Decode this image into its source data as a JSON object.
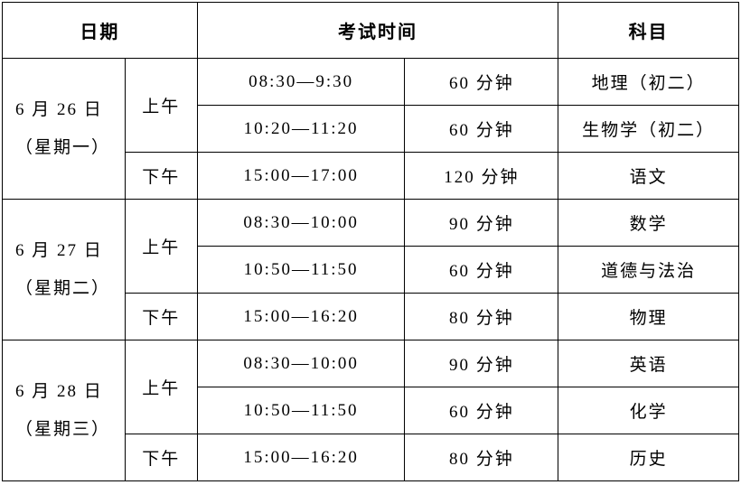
{
  "headers": {
    "date": "日期",
    "exam_time": "考试时间",
    "subject": "科目"
  },
  "days": [
    {
      "date_line1": "6 月 26 日",
      "date_line2": "（星期一）",
      "morning_label": "上午",
      "afternoon_label": "下午",
      "sessions": [
        {
          "time": "08:30—9:30",
          "duration": "60 分钟",
          "subject": "地理（初二）"
        },
        {
          "time": "10:20—11:20",
          "duration": "60 分钟",
          "subject": "生物学（初二）"
        },
        {
          "time": "15:00—17:00",
          "duration": "120 分钟",
          "subject": "语文"
        }
      ]
    },
    {
      "date_line1": "6 月 27 日",
      "date_line2": "（星期二）",
      "morning_label": "上午",
      "afternoon_label": "下午",
      "sessions": [
        {
          "time": "08:30—10:00",
          "duration": "90 分钟",
          "subject": "数学"
        },
        {
          "time": "10:50—11:50",
          "duration": "60 分钟",
          "subject": "道德与法治"
        },
        {
          "time": "15:00—16:20",
          "duration": "80 分钟",
          "subject": "物理"
        }
      ]
    },
    {
      "date_line1": "6 月 28 日",
      "date_line2": "（星期三）",
      "morning_label": "上午",
      "afternoon_label": "下午",
      "sessions": [
        {
          "time": "08:30—10:00",
          "duration": "90 分钟",
          "subject": "英语"
        },
        {
          "time": "10:50—11:50",
          "duration": "60 分钟",
          "subject": "化学"
        },
        {
          "time": "15:00—16:20",
          "duration": "80 分钟",
          "subject": "历史"
        }
      ]
    }
  ],
  "style": {
    "border_color": "#000000",
    "background_color": "#ffffff",
    "text_color": "#000000",
    "font_size_header": 20,
    "font_size_cell": 19
  }
}
